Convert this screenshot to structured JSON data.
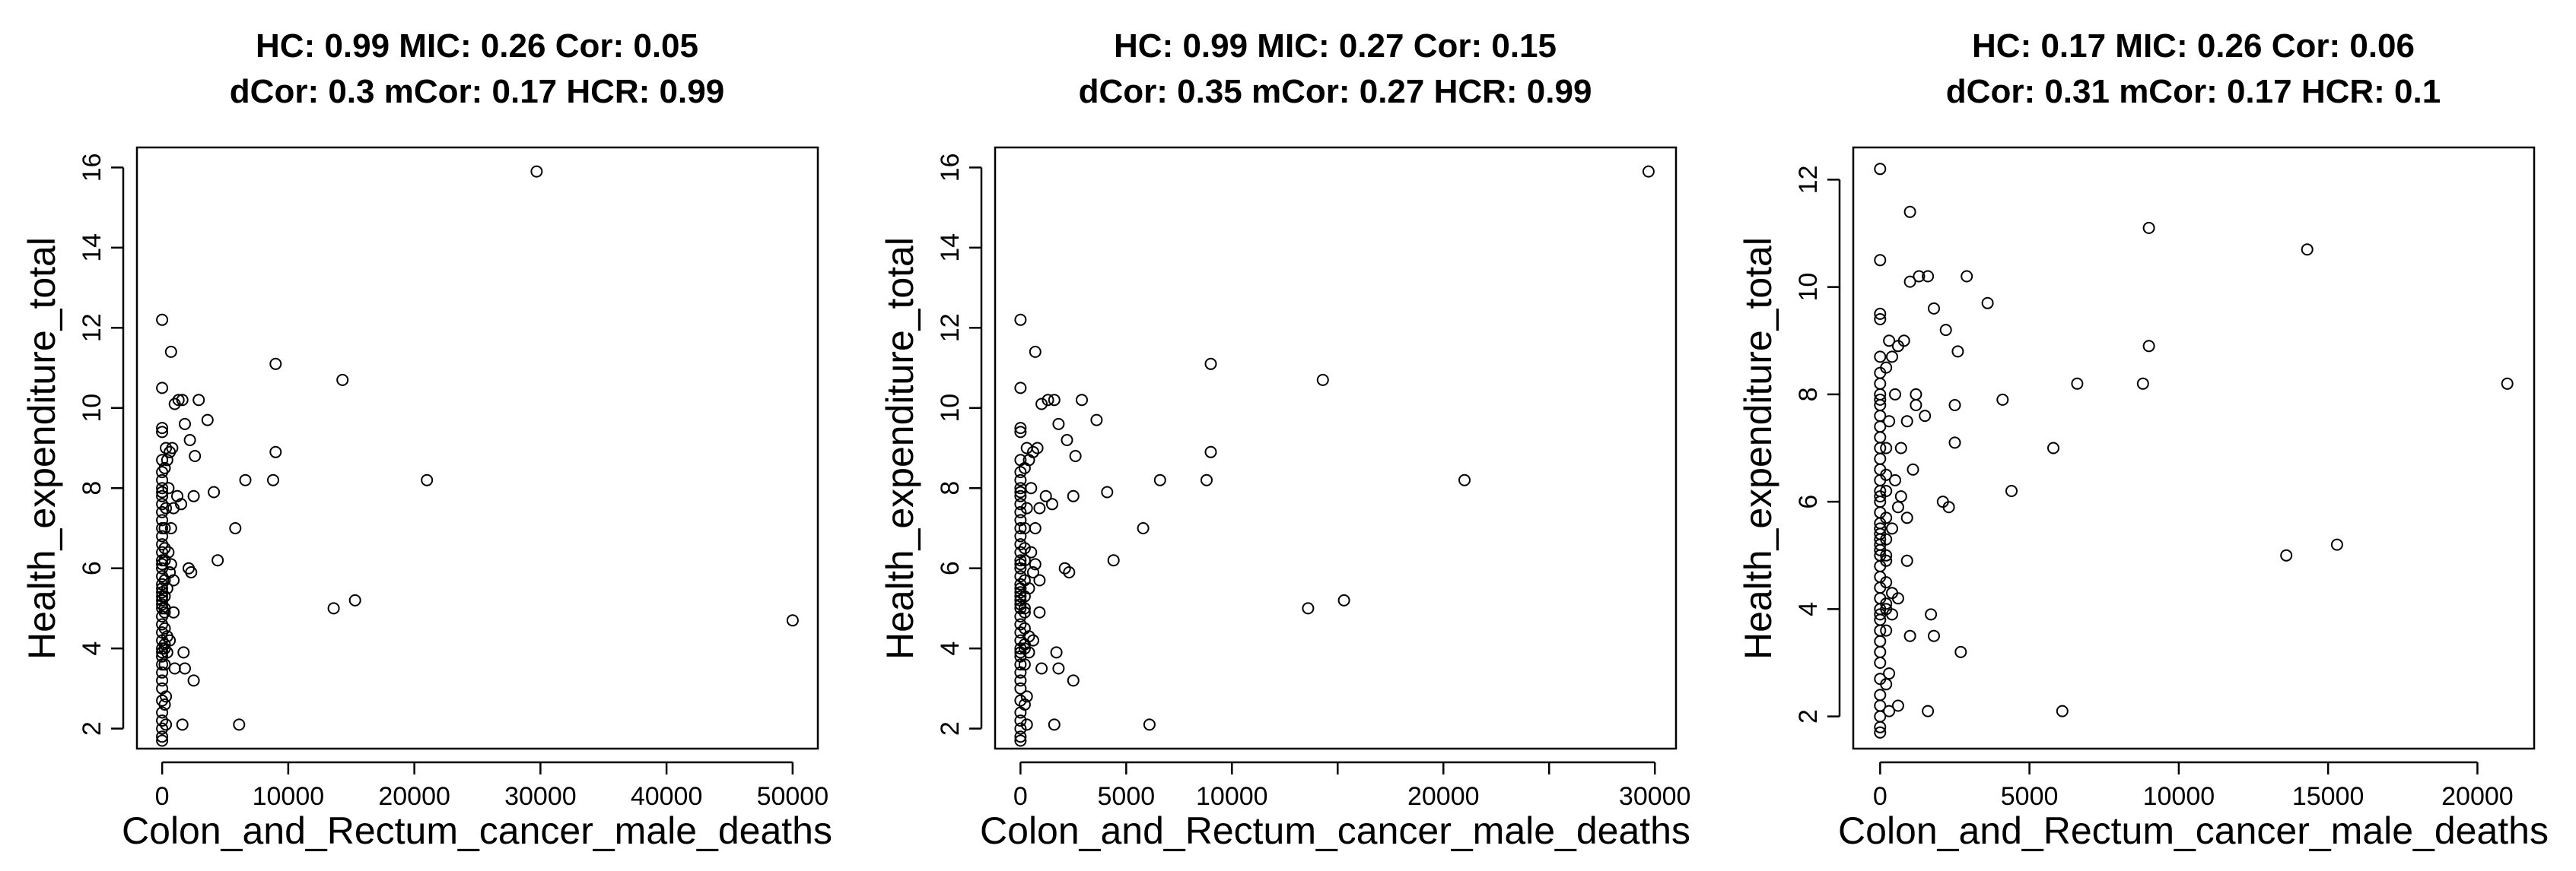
{
  "chart_data": [
    {
      "type": "scatter",
      "title_line1": "HC: 0.99  MIC: 0.26 Cor: 0.05",
      "title_line2": "dCor: 0.3  mCor: 0.17 HCR: 0.99",
      "xlabel": "Colon_and_Rectum_cancer_male_deaths",
      "ylabel": "Health_expenditure_total",
      "xlim": [
        -2000,
        52000
      ],
      "ylim": [
        1.5,
        16.5
      ],
      "xticks": [
        0,
        10000,
        20000,
        30000,
        40000,
        50000
      ],
      "xtick_labels": [
        "0",
        "10000",
        "20000",
        "30000",
        "40000",
        "50000"
      ],
      "yticks": [
        2,
        4,
        6,
        8,
        10,
        12,
        14,
        16
      ],
      "ytick_labels": [
        "2",
        "4",
        "6",
        "8",
        "10",
        "12",
        "14",
        "16"
      ],
      "points": [
        [
          29700,
          15.9
        ],
        [
          50000,
          4.7
        ],
        [
          21000,
          8.2
        ],
        [
          14300,
          10.7
        ],
        [
          13600,
          5.0
        ],
        [
          15300,
          5.2
        ],
        [
          9000,
          11.1
        ],
        [
          9000,
          8.9
        ],
        [
          8800,
          8.2
        ],
        [
          6600,
          8.2
        ],
        [
          5800,
          7.0
        ],
        [
          6100,
          2.1
        ],
        [
          4400,
          6.2
        ],
        [
          4100,
          7.9
        ],
        [
          3600,
          9.7
        ],
        [
          2900,
          10.2
        ],
        [
          2600,
          8.8
        ],
        [
          2500,
          7.8
        ],
        [
          2200,
          9.2
        ],
        [
          2100,
          6.0
        ],
        [
          2300,
          5.9
        ],
        [
          2500,
          3.2
        ],
        [
          1600,
          10.2
        ],
        [
          1300,
          10.2
        ],
        [
          1000,
          10.1
        ],
        [
          700,
          11.4
        ],
        [
          1800,
          9.6
        ],
        [
          1500,
          7.6
        ],
        [
          1200,
          7.8
        ],
        [
          1700,
          3.9
        ],
        [
          1800,
          3.5
        ],
        [
          1600,
          2.1
        ],
        [
          1000,
          3.5
        ],
        [
          900,
          4.9
        ],
        [
          700,
          6.1
        ],
        [
          500,
          6.4
        ],
        [
          300,
          7.5
        ],
        [
          600,
          8.9
        ],
        [
          800,
          9.0
        ],
        [
          400,
          8.7
        ],
        [
          200,
          8.5
        ],
        [
          0,
          12.2
        ],
        [
          0,
          10.5
        ],
        [
          0,
          9.5
        ],
        [
          0,
          9.4
        ],
        [
          0,
          8.7
        ],
        [
          0,
          8.4
        ],
        [
          0,
          8.2
        ],
        [
          0,
          8.0
        ],
        [
          0,
          7.8
        ],
        [
          0,
          7.6
        ],
        [
          0,
          7.4
        ],
        [
          0,
          7.2
        ],
        [
          0,
          7.0
        ],
        [
          0,
          6.8
        ],
        [
          0,
          6.6
        ],
        [
          0,
          6.4
        ],
        [
          0,
          6.2
        ],
        [
          0,
          6.0
        ],
        [
          0,
          5.8
        ],
        [
          0,
          5.6
        ],
        [
          0,
          5.4
        ],
        [
          0,
          5.3
        ],
        [
          0,
          5.2
        ],
        [
          0,
          5.1
        ],
        [
          0,
          5.0
        ],
        [
          0,
          4.8
        ],
        [
          0,
          4.6
        ],
        [
          0,
          4.4
        ],
        [
          0,
          4.2
        ],
        [
          0,
          4.0
        ],
        [
          0,
          3.8
        ],
        [
          0,
          3.6
        ],
        [
          0,
          3.4
        ],
        [
          0,
          3.2
        ],
        [
          0,
          3.0
        ],
        [
          0,
          2.7
        ],
        [
          0,
          2.4
        ],
        [
          0,
          2.2
        ],
        [
          0,
          2.0
        ],
        [
          0,
          1.8
        ],
        [
          0,
          1.7
        ],
        [
          200,
          7.0
        ],
        [
          200,
          6.5
        ],
        [
          200,
          6.2
        ],
        [
          200,
          5.7
        ],
        [
          200,
          5.3
        ],
        [
          200,
          4.9
        ],
        [
          200,
          4.5
        ],
        [
          200,
          4.1
        ],
        [
          200,
          3.6
        ],
        [
          200,
          2.6
        ],
        [
          400,
          3.9
        ],
        [
          400,
          4.3
        ],
        [
          400,
          5.5
        ],
        [
          600,
          4.2
        ],
        [
          600,
          5.9
        ],
        [
          700,
          7.0
        ],
        [
          900,
          7.5
        ],
        [
          300,
          9.0
        ],
        [
          500,
          8.0
        ],
        [
          900,
          5.7
        ],
        [
          300,
          2.8
        ],
        [
          300,
          2.1
        ],
        [
          0,
          5.5
        ],
        [
          0,
          6.1
        ],
        [
          0,
          3.9
        ],
        [
          200,
          4.0
        ],
        [
          200,
          5.0
        ],
        [
          0,
          7.9
        ]
      ]
    },
    {
      "type": "scatter",
      "title_line1": "HC: 0.99  MIC: 0.27 Cor: 0.15",
      "title_line2": "dCor: 0.35  mCor: 0.27 HCR: 0.99",
      "xlabel": "Colon_and_Rectum_cancer_male_deaths",
      "ylabel": "Health_expenditure_total",
      "xlim": [
        -1200,
        31000
      ],
      "ylim": [
        1.5,
        16.5
      ],
      "xticks": [
        0,
        5000,
        10000,
        15000,
        20000,
        25000,
        30000
      ],
      "xtick_labels": [
        "0",
        "5000",
        "10000",
        "",
        "20000",
        "",
        "30000"
      ],
      "yticks": [
        2,
        4,
        6,
        8,
        10,
        12,
        14,
        16
      ],
      "ytick_labels": [
        "2",
        "4",
        "6",
        "8",
        "10",
        "12",
        "14",
        "16"
      ],
      "points": [
        [
          29700,
          15.9
        ],
        [
          21000,
          8.2
        ],
        [
          14300,
          10.7
        ],
        [
          13600,
          5.0
        ],
        [
          15300,
          5.2
        ],
        [
          9000,
          11.1
        ],
        [
          9000,
          8.9
        ],
        [
          8800,
          8.2
        ],
        [
          6600,
          8.2
        ],
        [
          5800,
          7.0
        ],
        [
          6100,
          2.1
        ],
        [
          4400,
          6.2
        ],
        [
          4100,
          7.9
        ],
        [
          3600,
          9.7
        ],
        [
          2900,
          10.2
        ],
        [
          2600,
          8.8
        ],
        [
          2500,
          7.8
        ],
        [
          2200,
          9.2
        ],
        [
          2100,
          6.0
        ],
        [
          2300,
          5.9
        ],
        [
          2500,
          3.2
        ],
        [
          1600,
          10.2
        ],
        [
          1300,
          10.2
        ],
        [
          1000,
          10.1
        ],
        [
          700,
          11.4
        ],
        [
          1800,
          9.6
        ],
        [
          1500,
          7.6
        ],
        [
          1200,
          7.8
        ],
        [
          1700,
          3.9
        ],
        [
          1800,
          3.5
        ],
        [
          1600,
          2.1
        ],
        [
          1000,
          3.5
        ],
        [
          900,
          4.9
        ],
        [
          700,
          6.1
        ],
        [
          500,
          6.4
        ],
        [
          300,
          7.5
        ],
        [
          600,
          8.9
        ],
        [
          800,
          9.0
        ],
        [
          400,
          8.7
        ],
        [
          200,
          8.5
        ],
        [
          0,
          12.2
        ],
        [
          0,
          10.5
        ],
        [
          0,
          9.5
        ],
        [
          0,
          9.4
        ],
        [
          0,
          8.7
        ],
        [
          0,
          8.4
        ],
        [
          0,
          8.2
        ],
        [
          0,
          8.0
        ],
        [
          0,
          7.8
        ],
        [
          0,
          7.6
        ],
        [
          0,
          7.4
        ],
        [
          0,
          7.2
        ],
        [
          0,
          7.0
        ],
        [
          0,
          6.8
        ],
        [
          0,
          6.6
        ],
        [
          0,
          6.4
        ],
        [
          0,
          6.2
        ],
        [
          0,
          6.0
        ],
        [
          0,
          5.8
        ],
        [
          0,
          5.6
        ],
        [
          0,
          5.4
        ],
        [
          0,
          5.3
        ],
        [
          0,
          5.2
        ],
        [
          0,
          5.1
        ],
        [
          0,
          5.0
        ],
        [
          0,
          4.8
        ],
        [
          0,
          4.6
        ],
        [
          0,
          4.4
        ],
        [
          0,
          4.2
        ],
        [
          0,
          4.0
        ],
        [
          0,
          3.8
        ],
        [
          0,
          3.6
        ],
        [
          0,
          3.4
        ],
        [
          0,
          3.2
        ],
        [
          0,
          3.0
        ],
        [
          0,
          2.7
        ],
        [
          0,
          2.4
        ],
        [
          0,
          2.2
        ],
        [
          0,
          2.0
        ],
        [
          0,
          1.8
        ],
        [
          0,
          1.7
        ],
        [
          200,
          7.0
        ],
        [
          200,
          6.5
        ],
        [
          200,
          6.2
        ],
        [
          200,
          5.7
        ],
        [
          200,
          5.3
        ],
        [
          200,
          4.9
        ],
        [
          200,
          4.5
        ],
        [
          200,
          4.1
        ],
        [
          200,
          3.6
        ],
        [
          200,
          2.6
        ],
        [
          400,
          3.9
        ],
        [
          400,
          4.3
        ],
        [
          400,
          5.5
        ],
        [
          600,
          4.2
        ],
        [
          600,
          5.9
        ],
        [
          700,
          7.0
        ],
        [
          900,
          7.5
        ],
        [
          300,
          9.0
        ],
        [
          500,
          8.0
        ],
        [
          900,
          5.7
        ],
        [
          300,
          2.8
        ],
        [
          300,
          2.1
        ],
        [
          0,
          5.5
        ],
        [
          0,
          6.1
        ],
        [
          0,
          3.9
        ],
        [
          200,
          4.0
        ],
        [
          200,
          5.0
        ],
        [
          0,
          7.9
        ]
      ]
    },
    {
      "type": "scatter",
      "title_line1": "HC: 0.17  MIC: 0.26 Cor: 0.06",
      "title_line2": "dCor: 0.31  mCor: 0.17 HCR: 0.1",
      "xlabel": "Colon_and_Rectum_cancer_male_deaths",
      "ylabel": "Health_expenditure_total",
      "xlim": [
        -900,
        21900
      ],
      "ylim": [
        1.4,
        12.6
      ],
      "xticks": [
        0,
        5000,
        10000,
        15000,
        20000
      ],
      "xtick_labels": [
        "0",
        "5000",
        "10000",
        "15000",
        "20000"
      ],
      "yticks": [
        2,
        4,
        6,
        8,
        10,
        12
      ],
      "ytick_labels": [
        "2",
        "4",
        "6",
        "8",
        "10",
        "12"
      ],
      "points": [
        [
          21000,
          8.2
        ],
        [
          14300,
          10.7
        ],
        [
          13600,
          5.0
        ],
        [
          15300,
          5.2
        ],
        [
          9000,
          11.1
        ],
        [
          9000,
          8.9
        ],
        [
          8800,
          8.2
        ],
        [
          6600,
          8.2
        ],
        [
          5800,
          7.0
        ],
        [
          6100,
          2.1
        ],
        [
          4400,
          6.2
        ],
        [
          4100,
          7.9
        ],
        [
          3600,
          9.7
        ],
        [
          2900,
          10.2
        ],
        [
          2600,
          8.8
        ],
        [
          2500,
          7.8
        ],
        [
          2200,
          9.2
        ],
        [
          2100,
          6.0
        ],
        [
          2300,
          5.9
        ],
        [
          2500,
          7.1
        ],
        [
          2700,
          3.2
        ],
        [
          1600,
          10.2
        ],
        [
          1300,
          10.2
        ],
        [
          1000,
          10.1
        ],
        [
          1000,
          11.4
        ],
        [
          1800,
          9.6
        ],
        [
          1500,
          7.6
        ],
        [
          1200,
          7.8
        ],
        [
          1700,
          3.9
        ],
        [
          1800,
          3.5
        ],
        [
          1600,
          2.1
        ],
        [
          1000,
          3.5
        ],
        [
          900,
          4.9
        ],
        [
          700,
          6.1
        ],
        [
          500,
          6.4
        ],
        [
          300,
          7.5
        ],
        [
          600,
          8.9
        ],
        [
          800,
          9.0
        ],
        [
          400,
          8.7
        ],
        [
          200,
          8.5
        ],
        [
          0,
          12.2
        ],
        [
          0,
          10.5
        ],
        [
          0,
          9.5
        ],
        [
          0,
          9.4
        ],
        [
          0,
          8.7
        ],
        [
          0,
          8.4
        ],
        [
          0,
          8.2
        ],
        [
          0,
          8.0
        ],
        [
          0,
          7.8
        ],
        [
          0,
          7.6
        ],
        [
          0,
          7.4
        ],
        [
          0,
          7.2
        ],
        [
          0,
          7.0
        ],
        [
          0,
          6.8
        ],
        [
          0,
          6.6
        ],
        [
          0,
          6.4
        ],
        [
          0,
          6.2
        ],
        [
          0,
          6.0
        ],
        [
          0,
          5.8
        ],
        [
          0,
          5.6
        ],
        [
          0,
          5.4
        ],
        [
          0,
          5.3
        ],
        [
          0,
          5.2
        ],
        [
          0,
          5.1
        ],
        [
          0,
          5.0
        ],
        [
          0,
          4.8
        ],
        [
          0,
          4.6
        ],
        [
          0,
          4.4
        ],
        [
          0,
          4.2
        ],
        [
          0,
          4.0
        ],
        [
          0,
          3.8
        ],
        [
          0,
          3.6
        ],
        [
          0,
          3.4
        ],
        [
          0,
          3.2
        ],
        [
          0,
          3.0
        ],
        [
          0,
          2.7
        ],
        [
          0,
          2.4
        ],
        [
          0,
          2.2
        ],
        [
          0,
          2.0
        ],
        [
          0,
          1.8
        ],
        [
          0,
          1.7
        ],
        [
          200,
          7.0
        ],
        [
          200,
          6.5
        ],
        [
          200,
          6.2
        ],
        [
          200,
          5.7
        ],
        [
          200,
          5.3
        ],
        [
          200,
          4.9
        ],
        [
          200,
          4.5
        ],
        [
          200,
          4.1
        ],
        [
          200,
          3.6
        ],
        [
          200,
          2.6
        ],
        [
          400,
          3.9
        ],
        [
          400,
          4.3
        ],
        [
          400,
          5.5
        ],
        [
          600,
          4.2
        ],
        [
          600,
          5.9
        ],
        [
          700,
          7.0
        ],
        [
          900,
          7.5
        ],
        [
          300,
          9.0
        ],
        [
          500,
          8.0
        ],
        [
          900,
          5.7
        ],
        [
          300,
          2.8
        ],
        [
          300,
          2.1
        ],
        [
          0,
          5.5
        ],
        [
          0,
          6.1
        ],
        [
          0,
          3.9
        ],
        [
          200,
          4.0
        ],
        [
          200,
          5.0
        ],
        [
          0,
          7.9
        ],
        [
          1100,
          6.6
        ],
        [
          1200,
          8.0
        ],
        [
          600,
          2.2
        ]
      ]
    }
  ]
}
